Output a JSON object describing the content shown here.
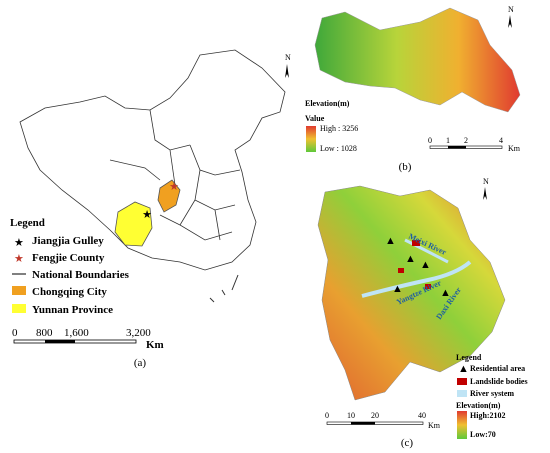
{
  "panel_a": {
    "north": "N",
    "legend": {
      "title": "Legend",
      "items": [
        "Jiangjia Gulley",
        "Fengjie County",
        "National Boundaries",
        "Chongqing City",
        "Yunnan Province"
      ]
    },
    "scale": {
      "ticks": [
        "0",
        "800",
        "1,600",
        "3,200"
      ],
      "unit": "Km"
    },
    "caption": "(a)"
  },
  "panel_b": {
    "north": "N",
    "legend": {
      "title": "Elevation(m)",
      "subtitle": "Value",
      "high": "High : 3256",
      "low": "Low : 1028"
    },
    "scale": {
      "ticks": [
        "0",
        "1",
        "2",
        "4"
      ],
      "unit": "Km"
    },
    "caption": "(b)"
  },
  "panel_c": {
    "north": "N",
    "rivers": [
      "Meixi River",
      "Yangtze River",
      "Daxi River"
    ],
    "legend": {
      "title": "Legend",
      "items": [
        "Residential area",
        "Landslide bodies",
        "River system"
      ],
      "elevation_title": "Elevation(m)",
      "high": "High:2102",
      "low": "Low:70"
    },
    "scale": {
      "ticks": [
        "0",
        "10",
        "20",
        "40"
      ],
      "unit": "Km"
    },
    "caption": "(c)"
  }
}
